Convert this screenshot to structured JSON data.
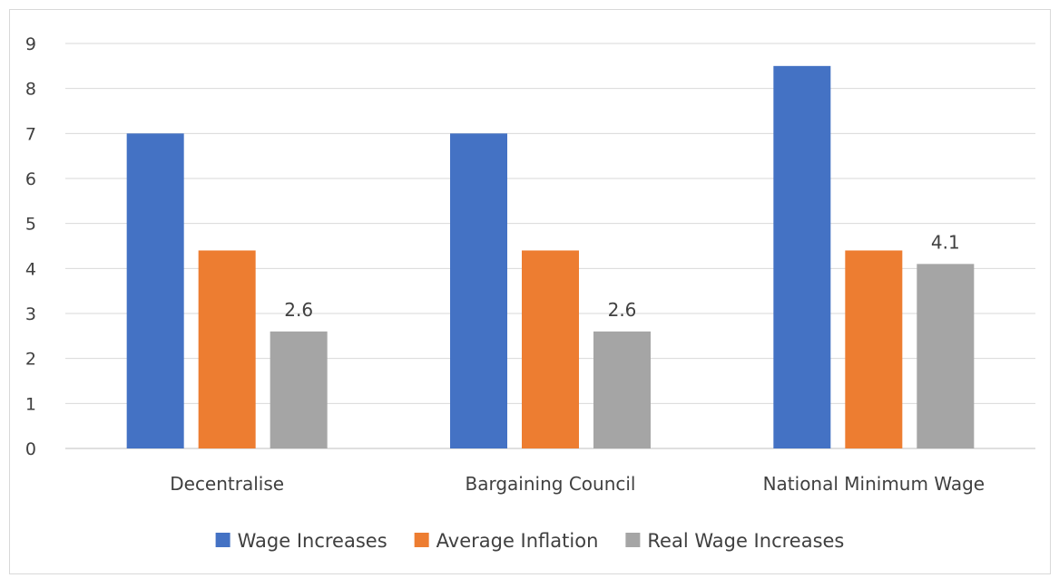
{
  "chart_data": {
    "type": "bar",
    "categories": [
      "Decentralise",
      "Bargaining Council",
      "National Minimum Wage"
    ],
    "series": [
      {
        "name": "Wage Increases",
        "values": [
          7,
          7,
          8.5
        ],
        "color": "#4472c4"
      },
      {
        "name": "Average Inflation",
        "values": [
          4.4,
          4.4,
          4.4
        ],
        "color": "#ed7d31"
      },
      {
        "name": "Real Wage Increases",
        "values": [
          2.6,
          2.6,
          4.1
        ],
        "color": "#a5a5a5",
        "data_labels": [
          "2.6",
          "2.6",
          "4.1"
        ]
      }
    ],
    "yticks": [
      "0",
      "1",
      "2",
      "3",
      "4",
      "5",
      "6",
      "7",
      "8",
      "9"
    ],
    "ylim": [
      0,
      9
    ],
    "grid": true,
    "legend_position": "bottom",
    "title": "",
    "xlabel": "",
    "ylabel": ""
  }
}
